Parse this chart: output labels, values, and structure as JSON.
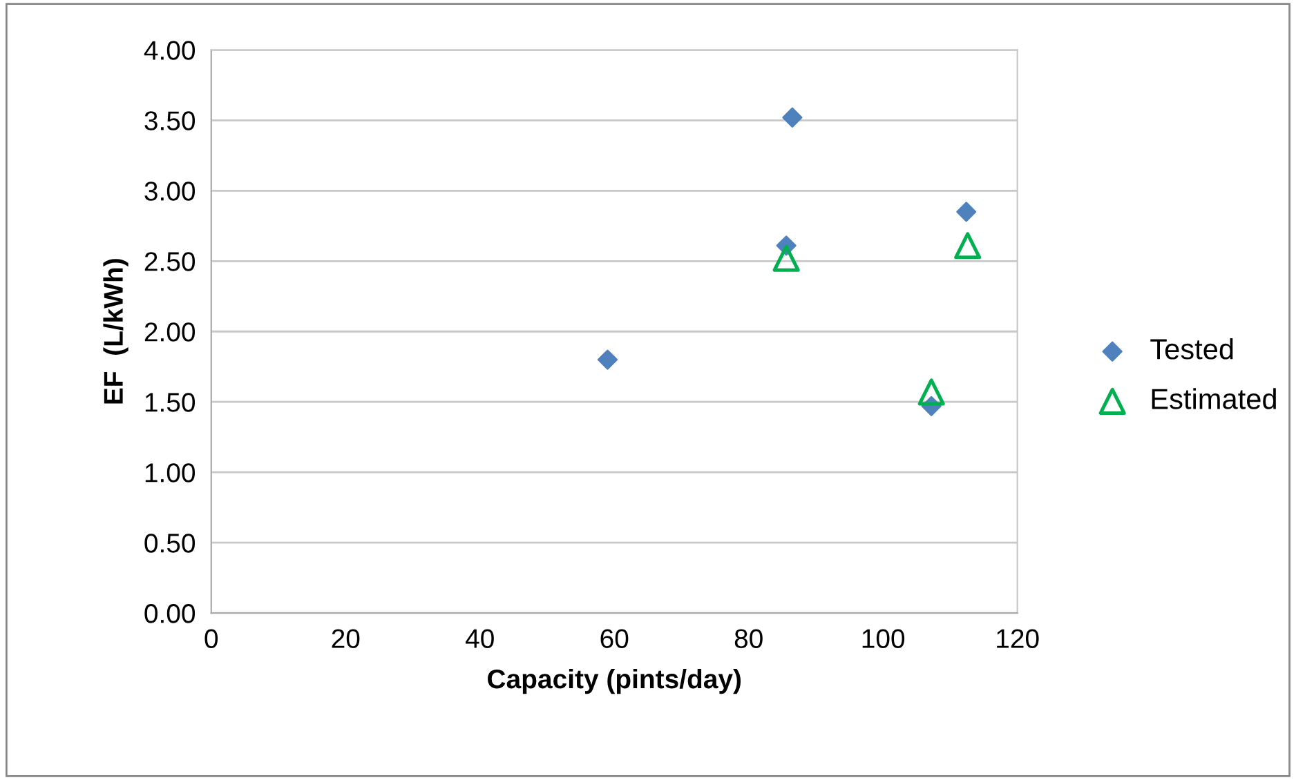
{
  "chart_data": {
    "type": "scatter",
    "xlabel": "Capacity (pints/day)",
    "ylabel": "EF  (L/kWh)",
    "xlim": [
      0,
      120
    ],
    "xticks": [
      0,
      20,
      40,
      60,
      80,
      100,
      120
    ],
    "ylim": [
      0,
      4
    ],
    "yticks": [
      {
        "value": 0,
        "label": "0.00"
      },
      {
        "value": 0.5,
        "label": "0.50"
      },
      {
        "value": 1,
        "label": "1.00"
      },
      {
        "value": 1.5,
        "label": "1.50"
      },
      {
        "value": 2,
        "label": "2.00"
      },
      {
        "value": 2.5,
        "label": "2.50"
      },
      {
        "value": 3,
        "label": "3.00"
      },
      {
        "value": 3.5,
        "label": "3.50"
      },
      {
        "value": 4,
        "label": "4.00"
      }
    ],
    "grid": "y",
    "legend": "right",
    "series": [
      {
        "name": "Tested",
        "color": "#4f81bd",
        "marker": "diamond",
        "x": [
          59,
          86.5,
          85.6,
          112.4,
          107.2
        ],
        "values": [
          1.8,
          3.52,
          2.61,
          2.85,
          1.47
        ]
      },
      {
        "name": "Estimated",
        "color": "#00b050",
        "marker": "triangle",
        "x": [
          85.6,
          107.2,
          112.6
        ],
        "values": [
          2.52,
          1.57,
          2.61
        ]
      }
    ]
  }
}
